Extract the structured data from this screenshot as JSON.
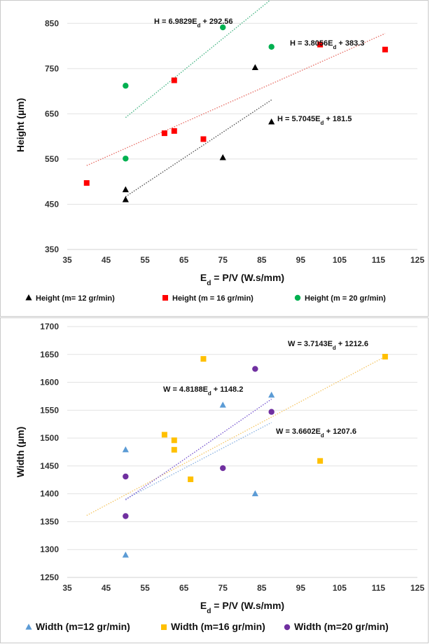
{
  "chart_data": [
    {
      "type": "scatter",
      "title": "",
      "xlabel": "E_d = P/V (W.s/mm)",
      "ylabel": "Height (µm)",
      "xlim": [
        35,
        125
      ],
      "ylim": [
        350,
        900
      ],
      "x_ticks": [
        35,
        45,
        55,
        65,
        75,
        85,
        95,
        105,
        115,
        125
      ],
      "y_ticks": [
        350,
        450,
        550,
        650,
        750,
        850
      ],
      "grid": "horizontal",
      "legend_position": "bottom",
      "series": [
        {
          "name": "Height (m= 12 gr/min)",
          "marker": "triangle",
          "color": "#000000",
          "trend_color": "#555555",
          "x": [
            50,
            50,
            75,
            83.3,
            87.5
          ],
          "y": [
            460,
            482,
            553,
            752,
            632
          ],
          "trendline": {
            "slope": 5.7045,
            "intercept": 181.5,
            "x_range": [
              50,
              87.5
            ],
            "equation": "H = 5.7045E_d + 181.5"
          }
        },
        {
          "name": "Height (m = 16 gr/min)",
          "marker": "square",
          "color": "#ff0000",
          "trend_color": "#e8736b",
          "x": [
            40,
            60,
            62.5,
            62.5,
            70,
            100,
            116.7
          ],
          "y": [
            497,
            607,
            612,
            724,
            594,
            803,
            792
          ],
          "trendline": {
            "slope": 3.8056,
            "intercept": 383.3,
            "x_range": [
              40,
              116.7
            ],
            "equation": "H = 3.8056E_d + 383.3"
          }
        },
        {
          "name": "Height (m = 20 gr/min)",
          "marker": "circle",
          "color": "#00b050",
          "trend_color": "#4cb888",
          "x": [
            50,
            50,
            75,
            87.5
          ],
          "y": [
            551,
            712,
            841,
            798
          ],
          "trendline": {
            "slope": 6.9829,
            "intercept": 292.56,
            "x_range": [
              50,
              87.5
            ],
            "equation": "H = 6.9829E_d + 292.56"
          }
        }
      ]
    },
    {
      "type": "scatter",
      "title": "",
      "xlabel": "E_d = P/V (W.s/mm)",
      "ylabel": "Width (µm)",
      "xlim": [
        35,
        125
      ],
      "ylim": [
        1250,
        1700
      ],
      "x_ticks": [
        35,
        45,
        55,
        65,
        75,
        85,
        95,
        105,
        115,
        125
      ],
      "y_ticks": [
        1250,
        1300,
        1350,
        1400,
        1450,
        1500,
        1550,
        1600,
        1650,
        1700
      ],
      "grid": "horizontal",
      "legend_position": "bottom",
      "series": [
        {
          "name": "Width (m=12 gr/min)",
          "marker": "triangle",
          "color": "#5b9bd5",
          "trend_color": "#8db4e2",
          "x": [
            50,
            50,
            75,
            83.3,
            87.5
          ],
          "y": [
            1290,
            1479,
            1559,
            1400,
            1577
          ],
          "trendline": {
            "slope": 3.6602,
            "intercept": 1207.6,
            "x_range": [
              50,
              87.5
            ],
            "equation": "W = 3.6602E_d + 1207.6"
          }
        },
        {
          "name": "Width (m=16 gr/min)",
          "marker": "square",
          "color": "#ffc000",
          "trend_color": "#f5c86a",
          "x": [
            60,
            62.5,
            62.5,
            66.7,
            70,
            100,
            116.7
          ],
          "y": [
            1506,
            1496,
            1479,
            1426,
            1642,
            1459,
            1646
          ],
          "trendline": {
            "slope": 3.7143,
            "intercept": 1212.6,
            "x_range": [
              40,
              116.7
            ],
            "equation": "W = 3.7143E_d + 1212.6"
          }
        },
        {
          "name": "Width (m=20 gr/min)",
          "marker": "circle",
          "color": "#7030a0",
          "trend_color": "#7a5ad0",
          "x": [
            50,
            50,
            75,
            83.3,
            87.5
          ],
          "y": [
            1360,
            1431,
            1446,
            1624,
            1547
          ],
          "trendline": {
            "slope": 4.8188,
            "intercept": 1148.2,
            "x_range": [
              50,
              87.5
            ],
            "equation": "W = 4.8188E_d + 1148.2"
          }
        }
      ]
    }
  ]
}
